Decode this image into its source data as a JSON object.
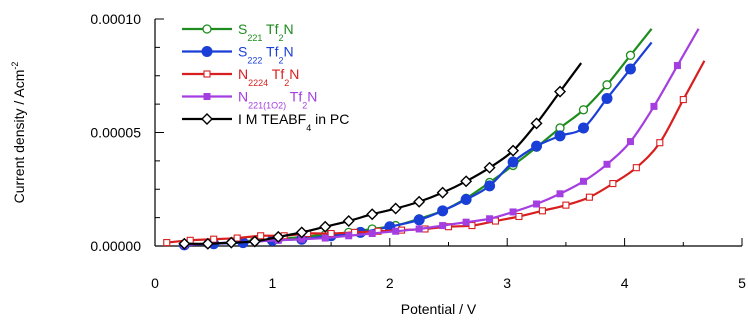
{
  "chart_data": {
    "type": "line",
    "title": "",
    "xlabel": "Potential / V",
    "ylabel": "Current density / Acm",
    "ylabel_sup": "-2",
    "xlim": [
      0,
      5
    ],
    "ylim": [
      0,
      0.0001
    ],
    "x_ticks": [
      "0",
      "1",
      "2",
      "3",
      "4",
      "5"
    ],
    "y_ticks": [
      "0.00000",
      "0.00005",
      "0.00010"
    ],
    "legend_position": "top-left",
    "grid": false,
    "series": [
      {
        "name_parts": [
          {
            "t": "S",
            "s": false
          },
          {
            "t": "221",
            "s": true
          },
          {
            "t": " Tf",
            "s": false
          },
          {
            "t": "2",
            "s": true
          },
          {
            "t": "N",
            "s": false
          }
        ],
        "color": "#1e8c1e",
        "marker": "open-circle",
        "x": [
          0.25,
          0.45,
          0.65,
          0.85,
          1.05,
          1.25,
          1.45,
          1.65,
          1.85,
          2.05,
          2.25,
          2.45,
          2.65,
          2.85,
          3.05,
          3.25,
          3.45,
          3.65,
          3.85,
          4.05
        ],
        "y": [
          5e-07,
          1e-06,
          1.5e-06,
          2.5e-06,
          3e-06,
          4e-06,
          5e-06,
          6e-06,
          7.5e-06,
          9e-06,
          1.2e-05,
          1.55e-05,
          2.1e-05,
          2.8e-05,
          3.55e-05,
          4.35e-05,
          5.2e-05,
          6e-05,
          7.1e-05,
          8.4e-05
        ]
      },
      {
        "name_parts": [
          {
            "t": "S",
            "s": false
          },
          {
            "t": "222",
            "s": true
          },
          {
            "t": " Tf",
            "s": false
          },
          {
            "t": "2",
            "s": true
          },
          {
            "t": "N",
            "s": false
          }
        ],
        "color": "#1a3fd6",
        "marker": "filled-circle",
        "x": [
          0.25,
          0.5,
          0.75,
          1.0,
          1.25,
          1.5,
          1.75,
          2.0,
          2.25,
          2.45,
          2.65,
          2.85,
          3.05,
          3.25,
          3.45,
          3.65,
          3.85,
          4.05
        ],
        "y": [
          5e-07,
          1e-06,
          1.5e-06,
          2.5e-06,
          3e-06,
          4.5e-06,
          6e-06,
          8.5e-06,
          1.15e-05,
          1.55e-05,
          2.05e-05,
          2.65e-05,
          3.7e-05,
          4.4e-05,
          4.85e-05,
          5.2e-05,
          6.5e-05,
          7.8e-05
        ]
      },
      {
        "name_parts": [
          {
            "t": "N",
            "s": false
          },
          {
            "t": "2224",
            "s": true
          },
          {
            "t": " Tf",
            "s": false
          },
          {
            "t": "2",
            "s": true
          },
          {
            "t": "N",
            "s": false
          }
        ],
        "color": "#d81e1e",
        "marker": "open-square",
        "x": [
          0.1,
          0.3,
          0.5,
          0.7,
          0.9,
          1.1,
          1.3,
          1.5,
          1.7,
          1.9,
          2.1,
          2.3,
          2.5,
          2.7,
          2.9,
          3.1,
          3.3,
          3.5,
          3.7,
          3.9,
          4.1,
          4.3,
          4.5
        ],
        "y": [
          1.5e-06,
          2.5e-06,
          3e-06,
          3.5e-06,
          4.5e-06,
          4.5e-06,
          5.5e-06,
          5.5e-06,
          6e-06,
          6.5e-06,
          7e-06,
          7.5e-06,
          8.5e-06,
          9e-06,
          1.1e-05,
          1.3e-05,
          1.55e-05,
          1.8e-05,
          2.15e-05,
          2.75e-05,
          3.45e-05,
          4.55e-05,
          6.45e-05
        ]
      },
      {
        "name_parts": [
          {
            "t": "N",
            "s": false
          },
          {
            "t": "221(1O2)",
            "s": true
          },
          {
            "t": " Tf",
            "s": false
          },
          {
            "t": "2",
            "s": true
          },
          {
            "t": "N",
            "s": false
          }
        ],
        "color": "#a43ee0",
        "marker": "filled-square",
        "x": [
          0.25,
          0.45,
          0.65,
          0.85,
          1.05,
          1.25,
          1.45,
          1.65,
          1.85,
          2.05,
          2.25,
          2.45,
          2.65,
          2.85,
          3.05,
          3.25,
          3.45,
          3.65,
          3.85,
          4.05,
          4.25,
          4.45
        ],
        "y": [
          5e-07,
          1e-06,
          1.5e-06,
          2e-06,
          2.5e-06,
          3e-06,
          3.5e-06,
          4.5e-06,
          5.5e-06,
          6.5e-06,
          7.5e-06,
          9e-06,
          1.05e-05,
          1.2e-05,
          1.5e-05,
          1.85e-05,
          2.3e-05,
          2.85e-05,
          3.6e-05,
          4.6e-05,
          6.15e-05,
          7.95e-05
        ]
      },
      {
        "name_parts": [
          {
            "t": "I M TEABF",
            "s": false
          },
          {
            "t": "4",
            "s": true
          },
          {
            "t": " in PC",
            "s": false
          }
        ],
        "color": "#000000",
        "marker": "open-diamond",
        "x": [
          0.25,
          0.45,
          0.65,
          0.85,
          1.05,
          1.25,
          1.45,
          1.65,
          1.85,
          2.05,
          2.25,
          2.45,
          2.65,
          2.85,
          3.05,
          3.25,
          3.45
        ],
        "y": [
          1e-06,
          1e-06,
          1.5e-06,
          2e-06,
          4e-06,
          6e-06,
          8.5e-06,
          1.1e-05,
          1.4e-05,
          1.65e-05,
          1.95e-05,
          2.35e-05,
          2.85e-05,
          3.45e-05,
          4.2e-05,
          5.4e-05,
          6.8e-05
        ]
      }
    ]
  }
}
